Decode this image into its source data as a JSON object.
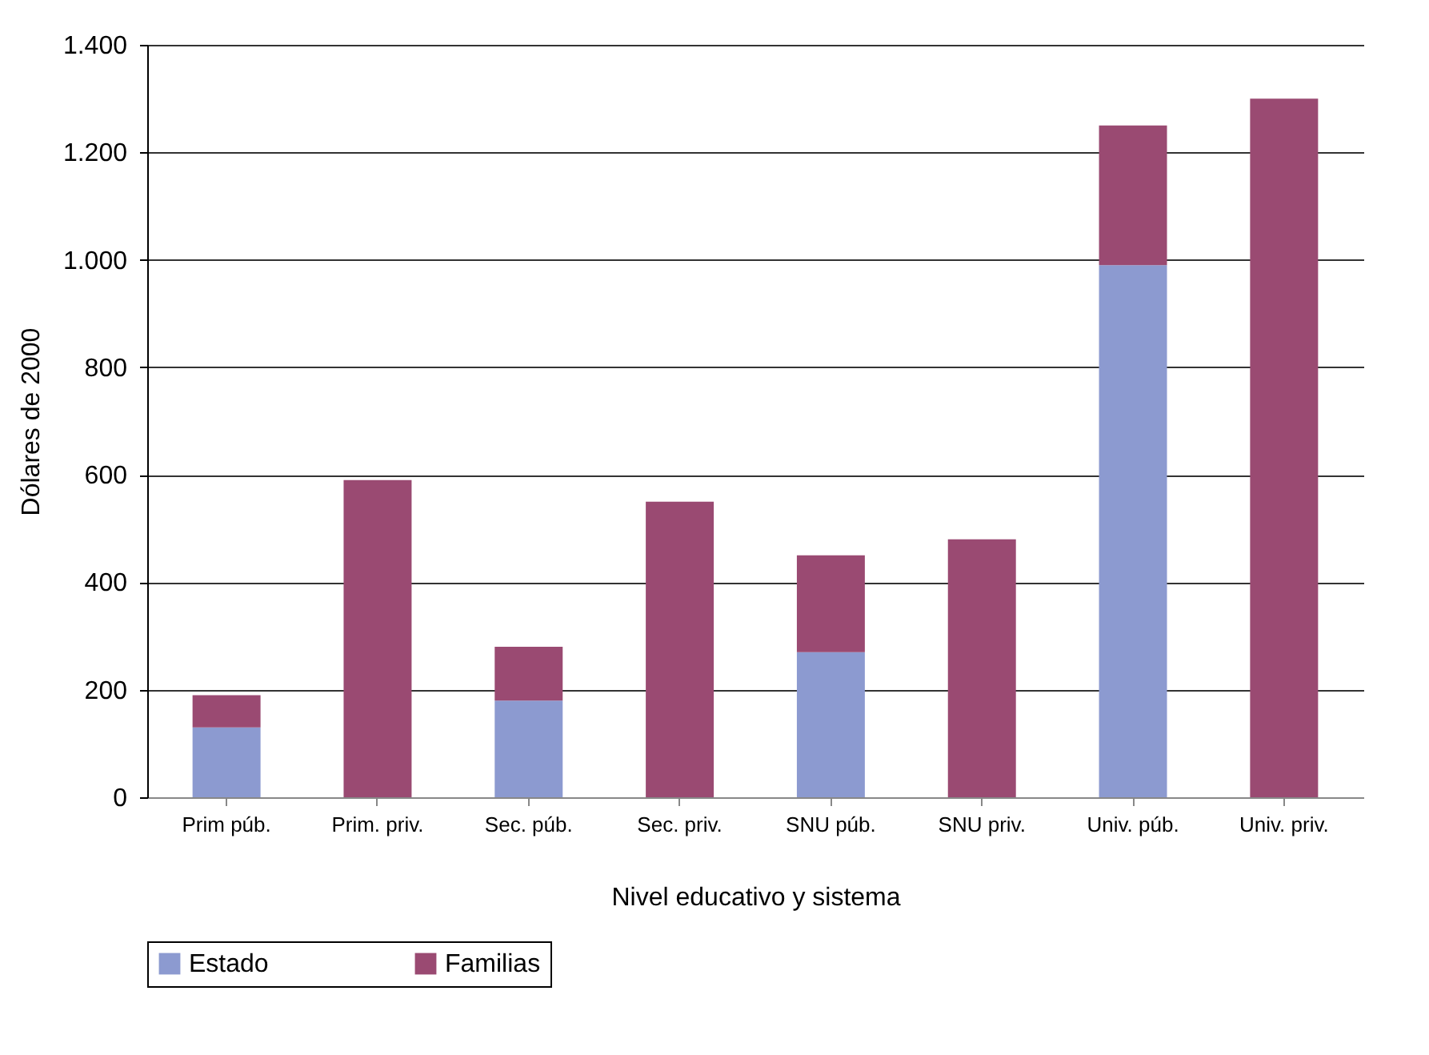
{
  "chart_data": {
    "type": "bar",
    "stacked": true,
    "xlabel": "Nivel educativo y sistema",
    "ylabel": "Dólares de 2000",
    "categories": [
      "Prim púb.",
      "Prim. priv.",
      "Sec. púb.",
      "Sec. priv.",
      "SNU púb.",
      "SNU priv.",
      "Univ. púb.",
      "Univ. priv."
    ],
    "series": [
      {
        "name": "Estado",
        "color": "#8c9ad0",
        "values": [
          130,
          0,
          180,
          0,
          270,
          0,
          990,
          0
        ]
      },
      {
        "name": "Familias",
        "color": "#9a4a72",
        "values": [
          60,
          590,
          100,
          550,
          180,
          480,
          260,
          1300
        ]
      }
    ],
    "ylim": [
      0,
      1400
    ],
    "yticks": [
      0,
      200,
      400,
      600,
      800,
      {
        "value": 1000,
        "label": "1.000"
      },
      {
        "value": 1200,
        "label": "1.200"
      },
      {
        "value": 1400,
        "label": "1.400"
      }
    ],
    "grid": "y",
    "legend": "bottom"
  }
}
